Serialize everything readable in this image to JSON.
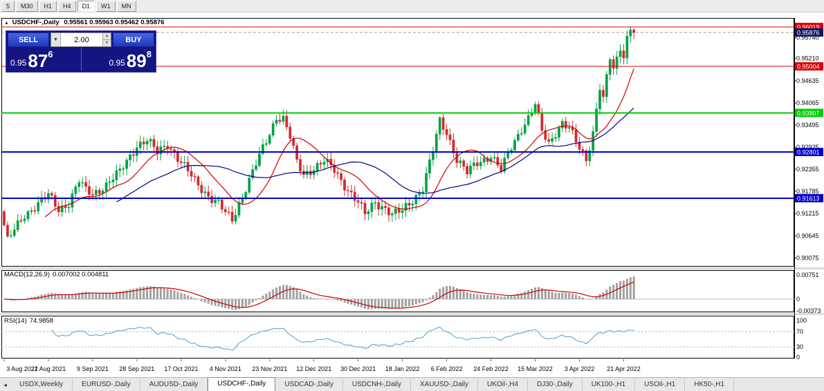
{
  "toolbar": {
    "timeframes": [
      {
        "label": "5",
        "active": false
      },
      {
        "label": "M30",
        "active": false
      },
      {
        "label": "H1",
        "active": false
      },
      {
        "label": "H4",
        "active": false
      },
      {
        "label": "D1",
        "active": true
      },
      {
        "label": "W1",
        "active": false
      },
      {
        "label": "MN",
        "active": false
      }
    ]
  },
  "chart": {
    "collapse_marker": "▲",
    "title_symbol": "USDCHF-,Daily",
    "title_ohlc": "0.95561 0.95963 0.95462 0.95876",
    "trade_panel": {
      "sell_label": "SELL",
      "buy_label": "BUY",
      "volume": "2.00",
      "sell_price_prefix": "0.95",
      "sell_price_big": "87",
      "sell_price_sup": "6",
      "buy_price_prefix": "0.95",
      "buy_price_big": "89",
      "buy_price_sup": "8"
    },
    "axis_ticks": [
      "0.95740",
      "0.95210",
      "0.94635",
      "0.94065",
      "0.93495",
      "0.92925",
      "0.92355",
      "0.91785",
      "0.91215",
      "0.90645",
      "0.90075"
    ],
    "price_lines": [
      {
        "value": 0.96019,
        "label": "0.96019",
        "color": "#e00000",
        "thickness": 1
      },
      {
        "value": 0.95004,
        "label": "0.95004",
        "color": "#e00000",
        "thickness": 1
      },
      {
        "value": 0.93807,
        "label": "0.93807",
        "color": "#00cc00",
        "thickness": 2
      },
      {
        "value": 0.92801,
        "label": "0.92801",
        "color": "#0000cc",
        "thickness": 2
      },
      {
        "value": 0.91613,
        "label": "0.91613",
        "color": "#0000cc",
        "thickness": 2
      }
    ],
    "bid_line": {
      "value": 0.95876,
      "label": "0.95876",
      "box_color": "#141464"
    },
    "scale": {
      "min": 0.8985,
      "max": 0.9625
    }
  },
  "chart_data": {
    "type": "candlestick",
    "title": "USDCHF-,Daily",
    "symbol": "USDCHF-",
    "period": "Daily",
    "ohlc_current": {
      "open": 0.95561,
      "high": 0.95963,
      "low": 0.95462,
      "close": 0.95876
    },
    "y_range": [
      0.8985,
      0.9625
    ],
    "candle_count": 186,
    "close_anchors": [
      [
        0,
        0.9092
      ],
      [
        1,
        0.9052
      ],
      [
        3,
        0.9078
      ],
      [
        6,
        0.9118
      ],
      [
        10,
        0.9148
      ],
      [
        13,
        0.9168
      ],
      [
        16,
        0.9132
      ],
      [
        19,
        0.915
      ],
      [
        22,
        0.9205
      ],
      [
        24,
        0.918
      ],
      [
        26,
        0.9172
      ],
      [
        30,
        0.9196
      ],
      [
        34,
        0.9228
      ],
      [
        39,
        0.9298
      ],
      [
        42,
        0.931
      ],
      [
        45,
        0.9278
      ],
      [
        48,
        0.9302
      ],
      [
        52,
        0.9252
      ],
      [
        56,
        0.9206
      ],
      [
        60,
        0.9168
      ],
      [
        63,
        0.9146
      ],
      [
        65,
        0.9122
      ],
      [
        67,
        0.9106
      ],
      [
        70,
        0.9168
      ],
      [
        73,
        0.9228
      ],
      [
        76,
        0.9288
      ],
      [
        78,
        0.9328
      ],
      [
        80,
        0.9372
      ],
      [
        82,
        0.9366
      ],
      [
        84,
        0.9318
      ],
      [
        86,
        0.9252
      ],
      [
        88,
        0.9222
      ],
      [
        91,
        0.924
      ],
      [
        94,
        0.9256
      ],
      [
        97,
        0.9232
      ],
      [
        100,
        0.9196
      ],
      [
        104,
        0.915
      ],
      [
        106,
        0.9118
      ],
      [
        109,
        0.9152
      ],
      [
        112,
        0.9136
      ],
      [
        114,
        0.9118
      ],
      [
        117,
        0.9128
      ],
      [
        120,
        0.9158
      ],
      [
        123,
        0.9188
      ],
      [
        126,
        0.9282
      ],
      [
        128,
        0.9358
      ],
      [
        130,
        0.9332
      ],
      [
        133,
        0.9262
      ],
      [
        136,
        0.9226
      ],
      [
        139,
        0.9252
      ],
      [
        143,
        0.9272
      ],
      [
        146,
        0.9232
      ],
      [
        149,
        0.9292
      ],
      [
        152,
        0.9342
      ],
      [
        154,
        0.9368
      ],
      [
        156,
        0.9402
      ],
      [
        158,
        0.9332
      ],
      [
        160,
        0.9302
      ],
      [
        162,
        0.9332
      ],
      [
        164,
        0.9356
      ],
      [
        166,
        0.934
      ],
      [
        169,
        0.9288
      ],
      [
        171,
        0.9262
      ],
      [
        173,
        0.9332
      ],
      [
        174,
        0.9392
      ],
      [
        175,
        0.9448
      ],
      [
        176,
        0.9416
      ],
      [
        177,
        0.9468
      ],
      [
        178,
        0.952
      ],
      [
        179,
        0.9492
      ],
      [
        180,
        0.9516
      ],
      [
        181,
        0.9548
      ],
      [
        182,
        0.9532
      ],
      [
        183,
        0.9576
      ],
      [
        184,
        0.96
      ],
      [
        185,
        0.95876
      ]
    ],
    "x_labels": [
      {
        "index": 0,
        "text": "3 Aug 2021"
      },
      {
        "index": 13,
        "text": "22 Aug 2021"
      },
      {
        "index": 26,
        "text": "9 Sep 2021"
      },
      {
        "index": 39,
        "text": "28 Sep 2021"
      },
      {
        "index": 52,
        "text": "17 Oct 2021"
      },
      {
        "index": 65,
        "text": "4 Nov 2021"
      },
      {
        "index": 78,
        "text": "23 Nov 2021"
      },
      {
        "index": 91,
        "text": "12 Dec 2021"
      },
      {
        "index": 104,
        "text": "30 Dec 2021"
      },
      {
        "index": 117,
        "text": "18 Jan 2022"
      },
      {
        "index": 130,
        "text": "6 Feb 2022"
      },
      {
        "index": 143,
        "text": "24 Feb 2022"
      },
      {
        "index": 156,
        "text": "15 Mar 2022"
      },
      {
        "index": 169,
        "text": "3 Apr 2022"
      },
      {
        "index": 182,
        "text": "21 Apr 2022"
      }
    ],
    "overlays": [
      {
        "name": "ma-fast",
        "type": "sma",
        "period": 13,
        "color": "#cc0000"
      },
      {
        "name": "ma-slow",
        "type": "sma",
        "period": 34,
        "color": "#000080"
      }
    ],
    "colors": {
      "up": "#00a248",
      "down": "#d42a2a"
    }
  },
  "macd": {
    "name": "MACD(12,26,9)",
    "values": "0.007002 0.004811",
    "fast": 12,
    "slow": 26,
    "signal": 9,
    "axis_ticks": [
      "0.00751",
      "0",
      "-0.00373"
    ],
    "histogram_color": "#a0a0a0",
    "signal_color": "#cc0000"
  },
  "rsi": {
    "name": "RSI(14)",
    "value": "74.9858",
    "period": 14,
    "axis_ticks": [
      "100",
      "70",
      "30",
      "0"
    ],
    "levels": [
      70,
      30
    ],
    "line_color": "#4aa0d4"
  },
  "tabs": {
    "scroll_left": "◄",
    "items": [
      {
        "label": "USDX,Weekly",
        "active": false
      },
      {
        "label": "EURUSD-,Daily",
        "active": false
      },
      {
        "label": "AUDUSD-,Daily",
        "active": false
      },
      {
        "label": "USDCHF-,Daily",
        "active": true
      },
      {
        "label": "USDCAD-,Daily",
        "active": false
      },
      {
        "label": "USDCNH-,Daily",
        "active": false
      },
      {
        "label": "XAUUSD-,Daily",
        "active": false
      },
      {
        "label": "UKOil-,H4",
        "active": false
      },
      {
        "label": "DJ30-,Daily",
        "active": false
      },
      {
        "label": "UK100-,H1",
        "active": false
      },
      {
        "label": "USOil-,H1",
        "active": false
      },
      {
        "label": "HK50-,H1",
        "active": false
      }
    ]
  }
}
